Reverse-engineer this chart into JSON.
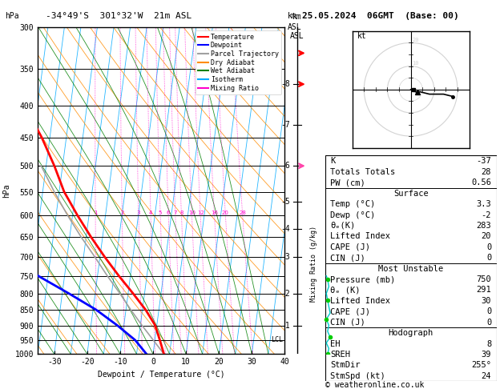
{
  "title_left": "-34°49'S  301°32'W  21m ASL",
  "title_right": "25.05.2024  06GMT  (Base: 00)",
  "xlabel": "Dewpoint / Temperature (°C)",
  "ylabel_left": "hPa",
  "pressure_levels": [
    300,
    350,
    400,
    450,
    500,
    550,
    600,
    650,
    700,
    750,
    800,
    850,
    900,
    950,
    1000
  ],
  "temp_color": "#ff0000",
  "dewp_color": "#0000ff",
  "parcel_color": "#a0a0a0",
  "dry_adiabat_color": "#ff8c00",
  "wet_adiabat_color": "#008000",
  "isotherm_color": "#00aaff",
  "mixing_ratio_color": "#ff00cc",
  "background_color": "#ffffff",
  "stats": {
    "K": -37,
    "Totals_Totals": 28,
    "PW_cm": 0.56,
    "Surface_Temp": 3.3,
    "Surface_Dewp": -2,
    "theta_e_K": 283,
    "Lifted_Index": 20,
    "CAPE_J": 0,
    "CIN_J": 0,
    "MU_Pressure_mb": 750,
    "MU_theta_e_K": 291,
    "MU_Lifted_Index": 30,
    "MU_CAPE_J": 0,
    "MU_CIN_J": 0,
    "EH": 8,
    "SREH": 39,
    "StmDir": 255,
    "StmSpd_kt": 24
  },
  "km_ticks": [
    1,
    2,
    3,
    4,
    5,
    6,
    7,
    8
  ],
  "km_pressures": [
    900,
    800,
    700,
    630,
    570,
    500,
    430,
    370
  ],
  "legend_items": [
    {
      "label": "Temperature",
      "color": "#ff0000"
    },
    {
      "label": "Dewpoint",
      "color": "#0000ff"
    },
    {
      "label": "Parcel Trajectory",
      "color": "#a0a0a0"
    },
    {
      "label": "Dry Adiabat",
      "color": "#ff8c00"
    },
    {
      "label": "Wet Adiabat",
      "color": "#008000"
    },
    {
      "label": "Isotherm",
      "color": "#00aaff"
    },
    {
      "label": "Mixing Ratio",
      "color": "#ff00cc"
    }
  ]
}
